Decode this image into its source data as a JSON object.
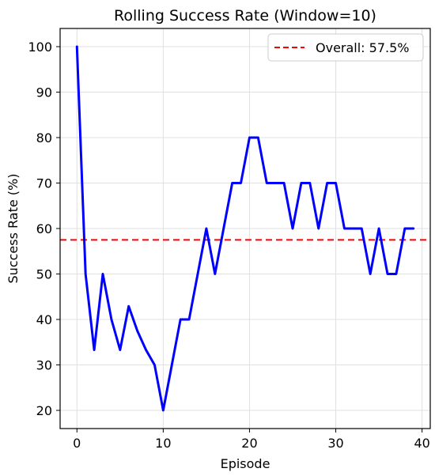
{
  "chart_data": {
    "type": "line",
    "title": "Rolling Success Rate (Window=10)",
    "xlabel": "Episode",
    "ylabel": "Success Rate (%)",
    "xlim": [
      -1.95,
      40.95
    ],
    "ylim": [
      16,
      104
    ],
    "x_ticks": [
      0,
      10,
      20,
      30,
      40
    ],
    "y_ticks": [
      20,
      30,
      40,
      50,
      60,
      70,
      80,
      90,
      100
    ],
    "grid": true,
    "legend_position": "top-right",
    "series": [
      {
        "color": "#0000ff",
        "x": [
          0,
          1,
          2,
          3,
          4,
          5,
          6,
          7,
          8,
          9,
          10,
          11,
          12,
          13,
          14,
          15,
          16,
          17,
          18,
          19,
          20,
          21,
          22,
          23,
          24,
          25,
          26,
          27,
          28,
          29,
          30,
          31,
          32,
          33,
          34,
          35,
          36,
          37,
          38,
          39
        ],
        "values": [
          100,
          50,
          33.3,
          50,
          40,
          33.3,
          42.9,
          37.5,
          33.3,
          30,
          20,
          30,
          40,
          40,
          50,
          60,
          50,
          60,
          70,
          70,
          80,
          80,
          70,
          70,
          70,
          60,
          70,
          70,
          60,
          70,
          70,
          60,
          60,
          60,
          50,
          60,
          50,
          50,
          60,
          60
        ]
      }
    ],
    "reference_lines": [
      {
        "orientation": "horizontal",
        "value": 57.5,
        "label": "Overall: 57.5%",
        "color": "#ff0000",
        "style": "dashed"
      }
    ]
  }
}
